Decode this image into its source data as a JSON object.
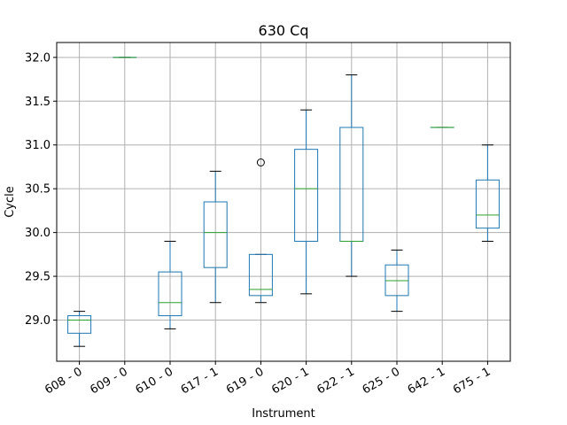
{
  "chart_data": {
    "type": "box",
    "title": "630 Cq",
    "xlabel": "Instrument",
    "ylabel": "Cycle",
    "ylim": [
      28.53,
      32.17
    ],
    "yticks": [
      29.0,
      29.5,
      30.0,
      30.5,
      31.0,
      31.5,
      32.0
    ],
    "ytick_labels": [
      "29.0",
      "29.5",
      "30.0",
      "30.5",
      "31.0",
      "31.5",
      "32.0"
    ],
    "grid": true,
    "categories": [
      "608 - 0",
      "609 - 0",
      "610 - 0",
      "617 - 1",
      "619 - 0",
      "620 - 1",
      "622 - 1",
      "625 - 0",
      "642 - 1",
      "675 - 1"
    ],
    "boxes": [
      {
        "whislo": 28.7,
        "q1": 28.85,
        "med": 29.0,
        "q3": 29.05,
        "whishi": 29.1,
        "fliers": []
      },
      {
        "whislo": 32.0,
        "q1": 32.0,
        "med": 32.0,
        "q3": 32.0,
        "whishi": 32.0,
        "fliers": []
      },
      {
        "whislo": 28.9,
        "q1": 29.05,
        "med": 29.2,
        "q3": 29.55,
        "whishi": 29.9,
        "fliers": []
      },
      {
        "whislo": 29.2,
        "q1": 29.6,
        "med": 30.0,
        "q3": 30.35,
        "whishi": 30.7,
        "fliers": []
      },
      {
        "whislo": 29.2,
        "q1": 29.28,
        "med": 29.35,
        "q3": 29.75,
        "whishi": 29.75,
        "fliers": [
          30.8
        ]
      },
      {
        "whislo": 29.3,
        "q1": 29.9,
        "med": 30.5,
        "q3": 30.95,
        "whishi": 31.4,
        "fliers": []
      },
      {
        "whislo": 29.5,
        "q1": 29.9,
        "med": 29.9,
        "q3": 31.2,
        "whishi": 31.8,
        "fliers": []
      },
      {
        "whislo": 29.1,
        "q1": 29.28,
        "med": 29.45,
        "q3": 29.63,
        "whishi": 29.8,
        "fliers": []
      },
      {
        "whislo": 31.2,
        "q1": 31.2,
        "med": 31.2,
        "q3": 31.2,
        "whishi": 31.2,
        "fliers": []
      },
      {
        "whislo": 29.9,
        "q1": 30.05,
        "med": 30.2,
        "q3": 30.6,
        "whishi": 31.0,
        "fliers": []
      }
    ],
    "colors": {
      "box": "#1f77b4",
      "median": "#2ca02c",
      "whisker_cap": "#000000",
      "grid": "#b0b0b0",
      "flier": "#000000"
    }
  }
}
